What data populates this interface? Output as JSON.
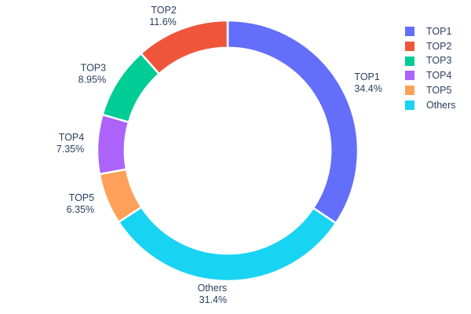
{
  "chart_data": {
    "type": "pie",
    "subtype": "donut",
    "hole": 0.79,
    "labels": [
      "TOP1",
      "TOP2",
      "TOP3",
      "TOP4",
      "TOP5",
      "Others"
    ],
    "values": [
      34.4,
      11.6,
      8.95,
      7.35,
      6.35,
      31.4
    ],
    "percent_labels": [
      "34.4%",
      "11.6%",
      "8.95%",
      "7.35%",
      "6.35%",
      "31.4%"
    ],
    "colors": [
      "#636EFA",
      "#EF553B",
      "#00CC96",
      "#AB63FA",
      "#FFA15A",
      "#19D3F3"
    ],
    "text_color": "#2a3f5f",
    "background_color": "#ffffff",
    "slice_separator_color": "#ffffff",
    "title": "",
    "legend": {
      "position": "right",
      "entries": [
        "TOP1",
        "TOP2",
        "TOP3",
        "TOP4",
        "TOP5",
        "Others"
      ]
    },
    "layout_hints": {
      "start_angle_deg_from_top": 0,
      "first_slice_direction": "clockwise",
      "remaining_slices_direction": "counterclockwise",
      "labels_outside": true,
      "grid": false
    }
  }
}
